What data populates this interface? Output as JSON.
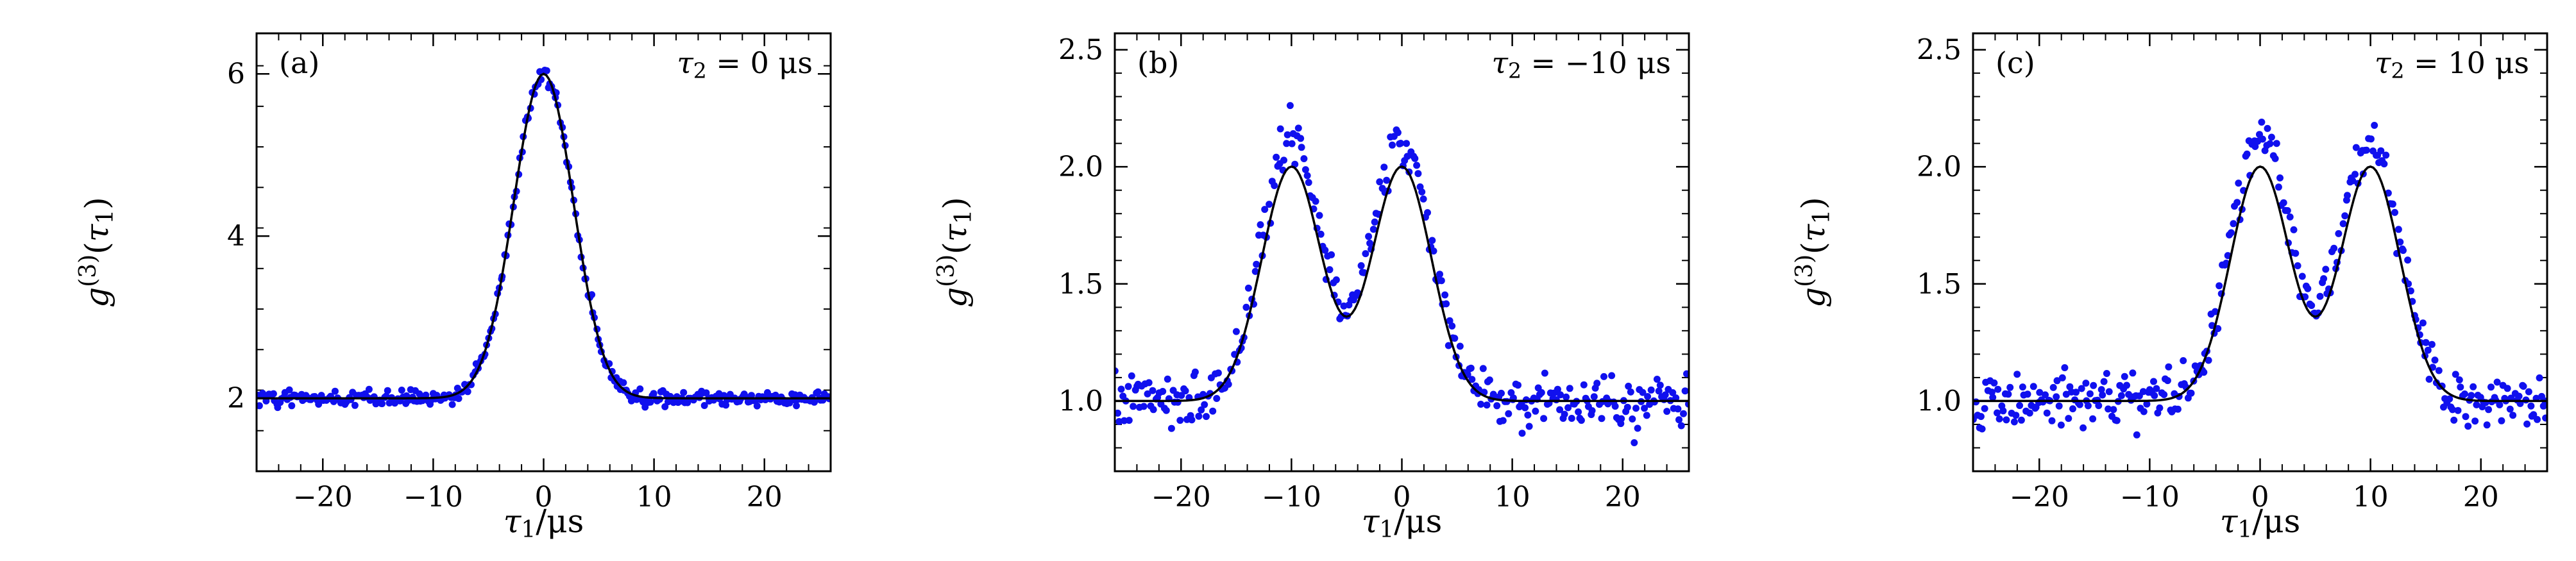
{
  "figure": {
    "background": "#ffffff",
    "text_color": "#000000",
    "point_color": "#1010ee",
    "fit_color": "#000000",
    "frame_color": "#000000"
  },
  "chart_data": [
    {
      "type": "scatter",
      "panel_label": "(a)",
      "annotation_plain": "τ₂ = 0 μs",
      "annotation_parts": [
        {
          "t": "τ",
          "i": true
        },
        {
          "t": "2",
          "sub": true
        },
        {
          "t": " = 0 μs"
        }
      ],
      "xlabel_plain": "τ₁/μs",
      "xlabel_parts": [
        {
          "t": "τ",
          "i": true
        },
        {
          "t": "1",
          "sub": true
        },
        {
          "t": "/μs"
        }
      ],
      "ylabel_plain": "g⁽³⁾(τ₁)",
      "ylabel_parts": [
        {
          "t": "g",
          "i": true
        },
        {
          "t": "(3)",
          "sup": true
        },
        {
          "t": "("
        },
        {
          "t": "τ",
          "i": true
        },
        {
          "t": "1",
          "sub": true
        },
        {
          "t": ")"
        }
      ],
      "xlim": [
        -26,
        26
      ],
      "ylim": [
        1.1,
        6.5
      ],
      "xticks": [
        -20,
        -10,
        0,
        10,
        20
      ],
      "yticks": [
        2,
        4,
        6
      ],
      "ytick_format": "int",
      "x_minor_step": 2,
      "y_minor_step": 0.5,
      "fit": {
        "baseline": 2.0,
        "peaks": [
          {
            "center": 0,
            "amplitude": 4.0,
            "sigma": 2.7
          }
        ]
      },
      "scatter": {
        "n_points": 330,
        "seed": 42,
        "noise_sd": 0.05,
        "peak_scale": 1.0,
        "marker_radius": 5.5
      }
    },
    {
      "type": "scatter",
      "panel_label": "(b)",
      "annotation_plain": "τ₂ = −10 μs",
      "annotation_parts": [
        {
          "t": "τ",
          "i": true
        },
        {
          "t": "2",
          "sub": true
        },
        {
          "t": " = −10 μs"
        }
      ],
      "xlabel_plain": "τ₁/μs",
      "xlabel_parts": [
        {
          "t": "τ",
          "i": true
        },
        {
          "t": "1",
          "sub": true
        },
        {
          "t": "/μs"
        }
      ],
      "ylabel_plain": "g⁽³⁾(τ₁)",
      "ylabel_parts": [
        {
          "t": "g",
          "i": true
        },
        {
          "t": "(3)",
          "sup": true
        },
        {
          "t": "("
        },
        {
          "t": "τ",
          "i": true
        },
        {
          "t": "1",
          "sub": true
        },
        {
          "t": ")"
        }
      ],
      "xlim": [
        -26,
        26
      ],
      "ylim": [
        0.7,
        2.57
      ],
      "xticks": [
        -20,
        -10,
        0,
        10,
        20
      ],
      "yticks": [
        1.0,
        1.5,
        2.0,
        2.5
      ],
      "ytick_format": "1f",
      "x_minor_step": 2,
      "y_minor_step": 0.1,
      "fit": {
        "baseline": 1.0,
        "peaks": [
          {
            "center": -10,
            "amplitude": 1.0,
            "sigma": 2.7
          },
          {
            "center": 0,
            "amplitude": 1.0,
            "sigma": 2.7
          }
        ]
      },
      "scatter": {
        "n_points": 330,
        "seed": 7,
        "noise_sd": 0.055,
        "peak_scale": 1.12,
        "marker_radius": 5.5
      }
    },
    {
      "type": "scatter",
      "panel_label": "(c)",
      "annotation_plain": "τ₂ = 10 μs",
      "annotation_parts": [
        {
          "t": "τ",
          "i": true
        },
        {
          "t": "2",
          "sub": true
        },
        {
          "t": " = 10 μs"
        }
      ],
      "xlabel_plain": "τ₁/μs",
      "xlabel_parts": [
        {
          "t": "τ",
          "i": true
        },
        {
          "t": "1",
          "sub": true
        },
        {
          "t": "/μs"
        }
      ],
      "ylabel_plain": "g⁽³⁾(τ₁)",
      "ylabel_parts": [
        {
          "t": "g",
          "i": true
        },
        {
          "t": "(3)",
          "sup": true
        },
        {
          "t": "("
        },
        {
          "t": "τ",
          "i": true
        },
        {
          "t": "1",
          "sub": true
        },
        {
          "t": ")"
        }
      ],
      "xlim": [
        -26,
        26
      ],
      "ylim": [
        0.7,
        2.57
      ],
      "xticks": [
        -20,
        -10,
        0,
        10,
        20
      ],
      "yticks": [
        1.0,
        1.5,
        2.0,
        2.5
      ],
      "ytick_format": "1f",
      "x_minor_step": 2,
      "y_minor_step": 0.1,
      "fit": {
        "baseline": 1.0,
        "peaks": [
          {
            "center": 0,
            "amplitude": 1.0,
            "sigma": 2.7
          },
          {
            "center": 10,
            "amplitude": 1.0,
            "sigma": 2.7
          }
        ]
      },
      "scatter": {
        "n_points": 330,
        "seed": 19,
        "noise_sd": 0.055,
        "peak_scale": 1.12,
        "marker_radius": 5.5
      }
    }
  ]
}
